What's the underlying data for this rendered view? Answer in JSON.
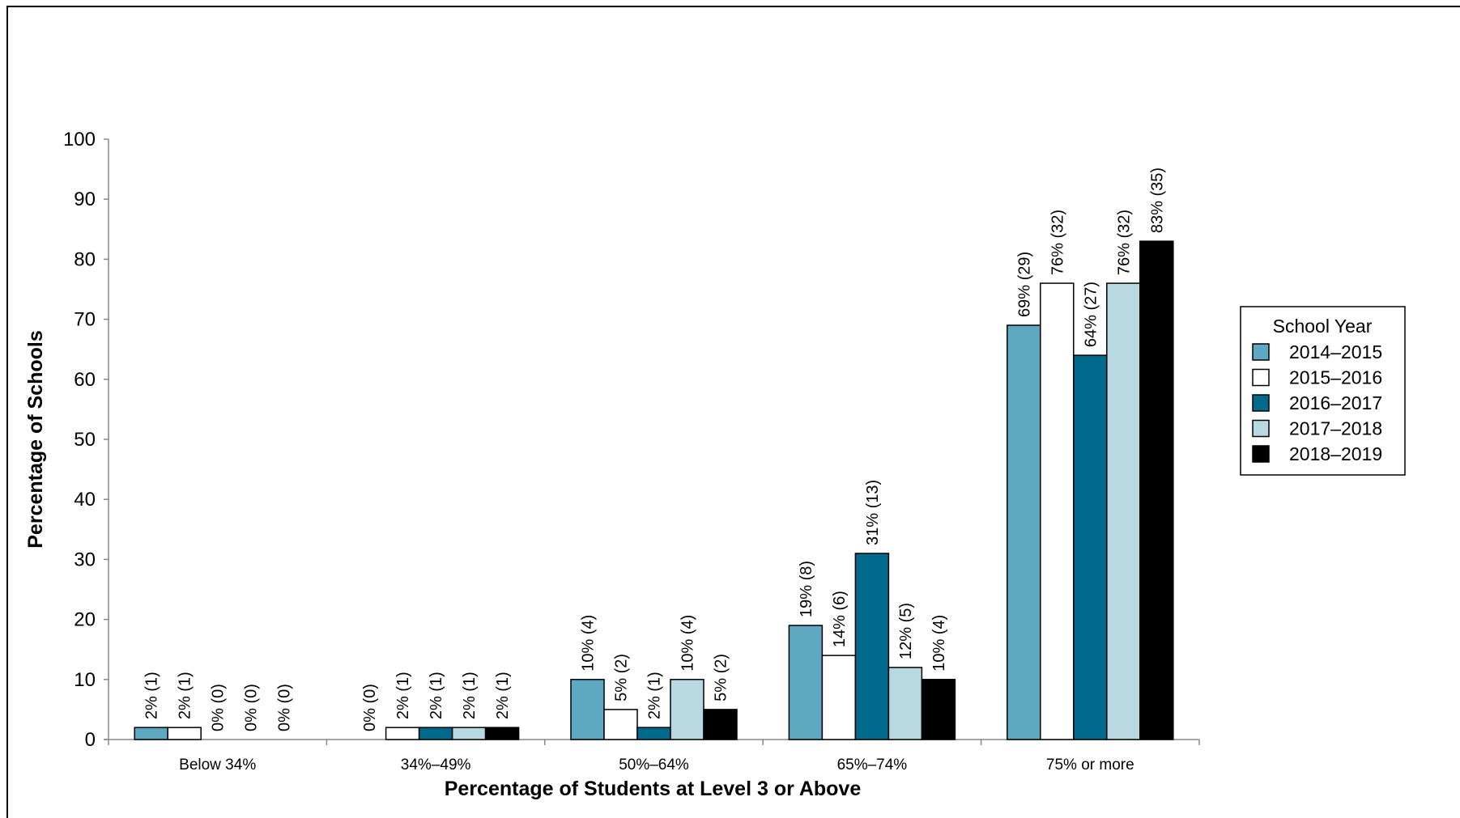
{
  "chart_data": {
    "type": "bar",
    "title": "",
    "xlabel": "Percentage of Students at Level 3 or Above",
    "ylabel": "Percentage of Schools",
    "ylim": [
      0,
      100
    ],
    "yticks": [
      0,
      10,
      20,
      30,
      40,
      50,
      60,
      70,
      80,
      90,
      100
    ],
    "grid": false,
    "legend_position": "right",
    "legend_title": "School Year",
    "categories": [
      "Below 34%",
      "34%–49%",
      "50%–64%",
      "65%–74%",
      "75% or more"
    ],
    "series": [
      {
        "name": "2014–2015",
        "color": "#5fa8c2",
        "values": [
          2,
          0,
          10,
          19,
          69
        ],
        "labels": [
          "2% (1)",
          "0% (0)",
          "10% (4)",
          "19% (8)",
          "69% (29)"
        ]
      },
      {
        "name": "2015–2016",
        "color": "#ffffff",
        "values": [
          2,
          2,
          5,
          14,
          76
        ],
        "labels": [
          "2% (1)",
          "2% (1)",
          "5% (2)",
          "14% (6)",
          "76% (32)"
        ]
      },
      {
        "name": "2016–2017",
        "color": "#006a8c",
        "values": [
          0,
          2,
          2,
          31,
          64
        ],
        "labels": [
          "0% (0)",
          "2% (1)",
          "2% (1)",
          "31% (13)",
          "64% (27)"
        ]
      },
      {
        "name": "2017–2018",
        "color": "#b8d8e2",
        "values": [
          0,
          2,
          10,
          12,
          76
        ],
        "labels": [
          "0% (0)",
          "2% (1)",
          "10% (4)",
          "12% (5)",
          "76% (32)"
        ]
      },
      {
        "name": "2018–2019",
        "color": "#000000",
        "values": [
          0,
          2,
          5,
          10,
          83
        ],
        "labels": [
          "0% (0)",
          "2% (1)",
          "5% (2)",
          "10% (4)",
          "83% (35)"
        ]
      }
    ]
  }
}
